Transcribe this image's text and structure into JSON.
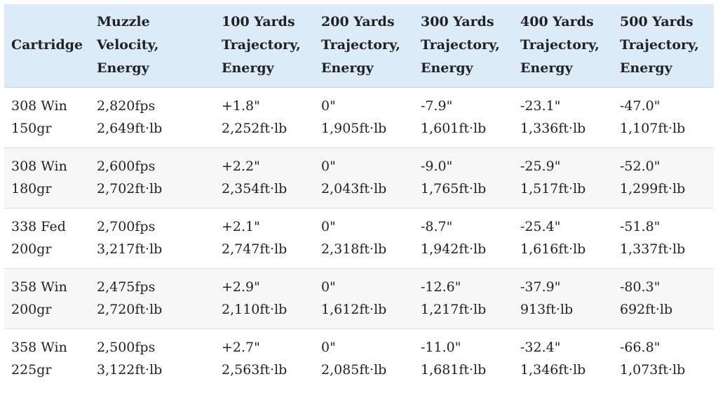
{
  "table": {
    "headers": [
      [
        "Cartridge"
      ],
      [
        "Muzzle",
        "Velocity,",
        "Energy"
      ],
      [
        "100 Yards",
        "Trajectory,",
        "Energy"
      ],
      [
        "200 Yards",
        "Trajectory,",
        "Energy"
      ],
      [
        "300 Yards",
        "Trajectory,",
        "Energy"
      ],
      [
        "400 Yards",
        "Trajectory,",
        "Energy"
      ],
      [
        "500 Yards",
        "Trajectory,",
        "Energy"
      ]
    ],
    "rows": [
      [
        [
          "308 Win",
          "150gr"
        ],
        [
          "2,820fps",
          "2,649ft·lb"
        ],
        [
          "+1.8\"",
          "2,252ft·lb"
        ],
        [
          "0\"",
          "1,905ft·lb"
        ],
        [
          "-7.9\"",
          "1,601ft·lb"
        ],
        [
          "-23.1\"",
          "1,336ft·lb"
        ],
        [
          "-47.0\"",
          "1,107ft·lb"
        ]
      ],
      [
        [
          "308 Win",
          "180gr"
        ],
        [
          "2,600fps",
          "2,702ft·lb"
        ],
        [
          "+2.2\"",
          "2,354ft·lb"
        ],
        [
          "0\"",
          "2,043ft·lb"
        ],
        [
          "-9.0\"",
          "1,765ft·lb"
        ],
        [
          "-25.9\"",
          "1,517ft·lb"
        ],
        [
          "-52.0\"",
          "1,299ft·lb"
        ]
      ],
      [
        [
          "338 Fed",
          "200gr"
        ],
        [
          "2,700fps",
          "3,217ft·lb"
        ],
        [
          "+2.1\"",
          "2,747ft·lb"
        ],
        [
          "0\"",
          "2,318ft·lb"
        ],
        [
          "-8.7\"",
          "1,942ft·lb"
        ],
        [
          "-25.4\"",
          "1,616ft·lb"
        ],
        [
          "-51.8\"",
          "1,337ft·lb"
        ]
      ],
      [
        [
          "358 Win",
          "200gr"
        ],
        [
          "2,475fps",
          "2,720ft·lb"
        ],
        [
          "+2.9\"",
          "2,110ft·lb"
        ],
        [
          "0\"",
          "1,612ft·lb"
        ],
        [
          "-12.6\"",
          "1,217ft·lb"
        ],
        [
          "-37.9\"",
          "913ft·lb"
        ],
        [
          "-80.3\"",
          "692ft·lb"
        ]
      ],
      [
        [
          "358 Win",
          "225gr"
        ],
        [
          "2,500fps",
          "3,122ft·lb"
        ],
        [
          "+2.7\"",
          "2,563ft·lb"
        ],
        [
          "0\"",
          "2,085ft·lb"
        ],
        [
          "-11.0\"",
          "1,681ft·lb"
        ],
        [
          "-32.4\"",
          "1,346ft·lb"
        ],
        [
          "-66.8\"",
          "1,073ft·lb"
        ]
      ]
    ],
    "colors": {
      "header_bg": "#dcebf8",
      "row_alt_bg": "#f7f7f7",
      "text": "#222222"
    }
  }
}
